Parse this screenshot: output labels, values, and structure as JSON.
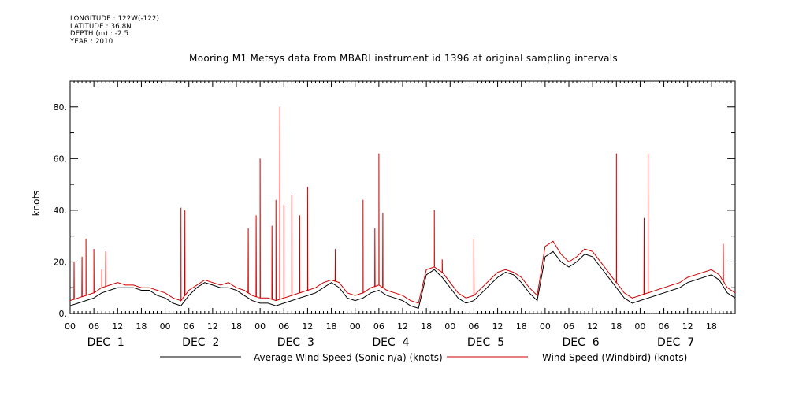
{
  "header": {
    "longitude": "LONGITUDE : 122W(-122)",
    "latitude": "LATITUDE : 36.8N",
    "depth": "DEPTH (m) : -2.5",
    "year": "YEAR : 2010"
  },
  "chart_data": {
    "type": "line",
    "title": "Mooring M1 Metsys data from MBARI instrument id 1396 at original sampling intervals",
    "ylabel": "knots",
    "xlabel": "",
    "ylim": [
      0,
      90
    ],
    "xlim_hours": [
      0,
      168
    ],
    "ytick_labels": [
      "0.",
      "20.",
      "40.",
      "60.",
      "80."
    ],
    "ytick_values": [
      0,
      20,
      40,
      60,
      80
    ],
    "xtick_labels": [
      "00",
      "06",
      "12",
      "18",
      "00",
      "06",
      "12",
      "18",
      "00",
      "06",
      "12",
      "18",
      "00",
      "06",
      "12",
      "18",
      "00",
      "06",
      "12",
      "18",
      "00",
      "06",
      "12",
      "18",
      "00",
      "06",
      "12",
      "18"
    ],
    "day_labels": [
      "DEC  1",
      "DEC  2",
      "DEC  3",
      "DEC  4",
      "DEC  5",
      "DEC  6",
      "DEC  7"
    ],
    "x_unit": "hours from 00:00 DEC 1 2010",
    "series": [
      {
        "name": "Average Wind Speed (Sonic-n/a) (knots)",
        "color": "#000000",
        "x": [
          0,
          2,
          4,
          6,
          8,
          10,
          12,
          14,
          16,
          18,
          20,
          22,
          24,
          26,
          28,
          30,
          32,
          34,
          36,
          38,
          40,
          42,
          44,
          46,
          48,
          50,
          52,
          54,
          56,
          58,
          60,
          62,
          64,
          66,
          68,
          70,
          72,
          74,
          76,
          78,
          80,
          82,
          84,
          86,
          88,
          90,
          92,
          94,
          96,
          98,
          100,
          102,
          104,
          106,
          108,
          110,
          112,
          114,
          116,
          118,
          120,
          122,
          124,
          126,
          128,
          130,
          132,
          134,
          136,
          138,
          140,
          142,
          144,
          146,
          148,
          150,
          152,
          154,
          156,
          158,
          160,
          162,
          164,
          166,
          168
        ],
        "values": [
          3,
          4,
          5,
          6,
          8,
          9,
          10,
          10,
          10,
          9,
          9,
          7,
          6,
          4,
          3,
          7,
          10,
          12,
          11,
          10,
          10,
          9,
          7,
          5,
          4,
          4,
          3,
          4,
          5,
          6,
          7,
          8,
          10,
          12,
          10,
          6,
          5,
          6,
          8,
          9,
          7,
          6,
          5,
          3,
          2,
          15,
          17,
          14,
          10,
          6,
          4,
          5,
          8,
          11,
          14,
          16,
          15,
          12,
          8,
          5,
          22,
          24,
          20,
          18,
          20,
          23,
          22,
          18,
          14,
          10,
          6,
          4,
          5,
          6,
          7,
          8,
          9,
          10,
          12,
          13,
          14,
          15,
          13,
          8,
          6
        ]
      },
      {
        "name": "Wind Speed (Windbird) (knots)",
        "color": "#cc0000",
        "x": [
          0,
          2,
          4,
          6,
          8,
          10,
          12,
          14,
          16,
          18,
          20,
          22,
          24,
          26,
          28,
          30,
          32,
          34,
          36,
          38,
          40,
          42,
          44,
          46,
          48,
          50,
          52,
          54,
          56,
          58,
          60,
          62,
          64,
          66,
          68,
          70,
          72,
          74,
          76,
          78,
          80,
          82,
          84,
          86,
          88,
          90,
          92,
          94,
          96,
          98,
          100,
          102,
          104,
          106,
          108,
          110,
          112,
          114,
          116,
          118,
          120,
          122,
          124,
          126,
          128,
          130,
          132,
          134,
          136,
          138,
          140,
          142,
          144,
          146,
          148,
          150,
          152,
          154,
          156,
          158,
          160,
          162,
          164,
          166,
          168
        ],
        "values": [
          5,
          6,
          7,
          8,
          10,
          11,
          12,
          11,
          11,
          10,
          10,
          9,
          8,
          6,
          5,
          9,
          11,
          13,
          12,
          11,
          12,
          10,
          9,
          7,
          6,
          6,
          5,
          6,
          7,
          8,
          9,
          10,
          12,
          13,
          12,
          8,
          7,
          8,
          10,
          11,
          9,
          8,
          7,
          5,
          4,
          17,
          18,
          16,
          12,
          8,
          6,
          7,
          10,
          13,
          16,
          17,
          16,
          14,
          10,
          7,
          26,
          28,
          23,
          20,
          22,
          25,
          24,
          20,
          16,
          12,
          8,
          6,
          7,
          8,
          9,
          10,
          11,
          12,
          14,
          15,
          16,
          17,
          15,
          10,
          8
        ],
        "spikes": [
          {
            "x": 1,
            "value": 20
          },
          {
            "x": 3,
            "value": 22
          },
          {
            "x": 4,
            "value": 29
          },
          {
            "x": 6,
            "value": 25
          },
          {
            "x": 8,
            "value": 17
          },
          {
            "x": 9,
            "value": 24
          },
          {
            "x": 28,
            "value": 41
          },
          {
            "x": 29,
            "value": 40
          },
          {
            "x": 45,
            "value": 33
          },
          {
            "x": 47,
            "value": 38
          },
          {
            "x": 48,
            "value": 60
          },
          {
            "x": 51,
            "value": 34
          },
          {
            "x": 52,
            "value": 44
          },
          {
            "x": 53,
            "value": 80
          },
          {
            "x": 54,
            "value": 42
          },
          {
            "x": 56,
            "value": 46
          },
          {
            "x": 58,
            "value": 38
          },
          {
            "x": 60,
            "value": 49
          },
          {
            "x": 67,
            "value": 25
          },
          {
            "x": 74,
            "value": 44
          },
          {
            "x": 77,
            "value": 33
          },
          {
            "x": 78,
            "value": 62
          },
          {
            "x": 79,
            "value": 39
          },
          {
            "x": 92,
            "value": 40
          },
          {
            "x": 94,
            "value": 21
          },
          {
            "x": 102,
            "value": 29
          },
          {
            "x": 138,
            "value": 62
          },
          {
            "x": 145,
            "value": 37
          },
          {
            "x": 146,
            "value": 62
          },
          {
            "x": 165,
            "value": 27
          }
        ]
      }
    ],
    "legend": "bottom"
  }
}
